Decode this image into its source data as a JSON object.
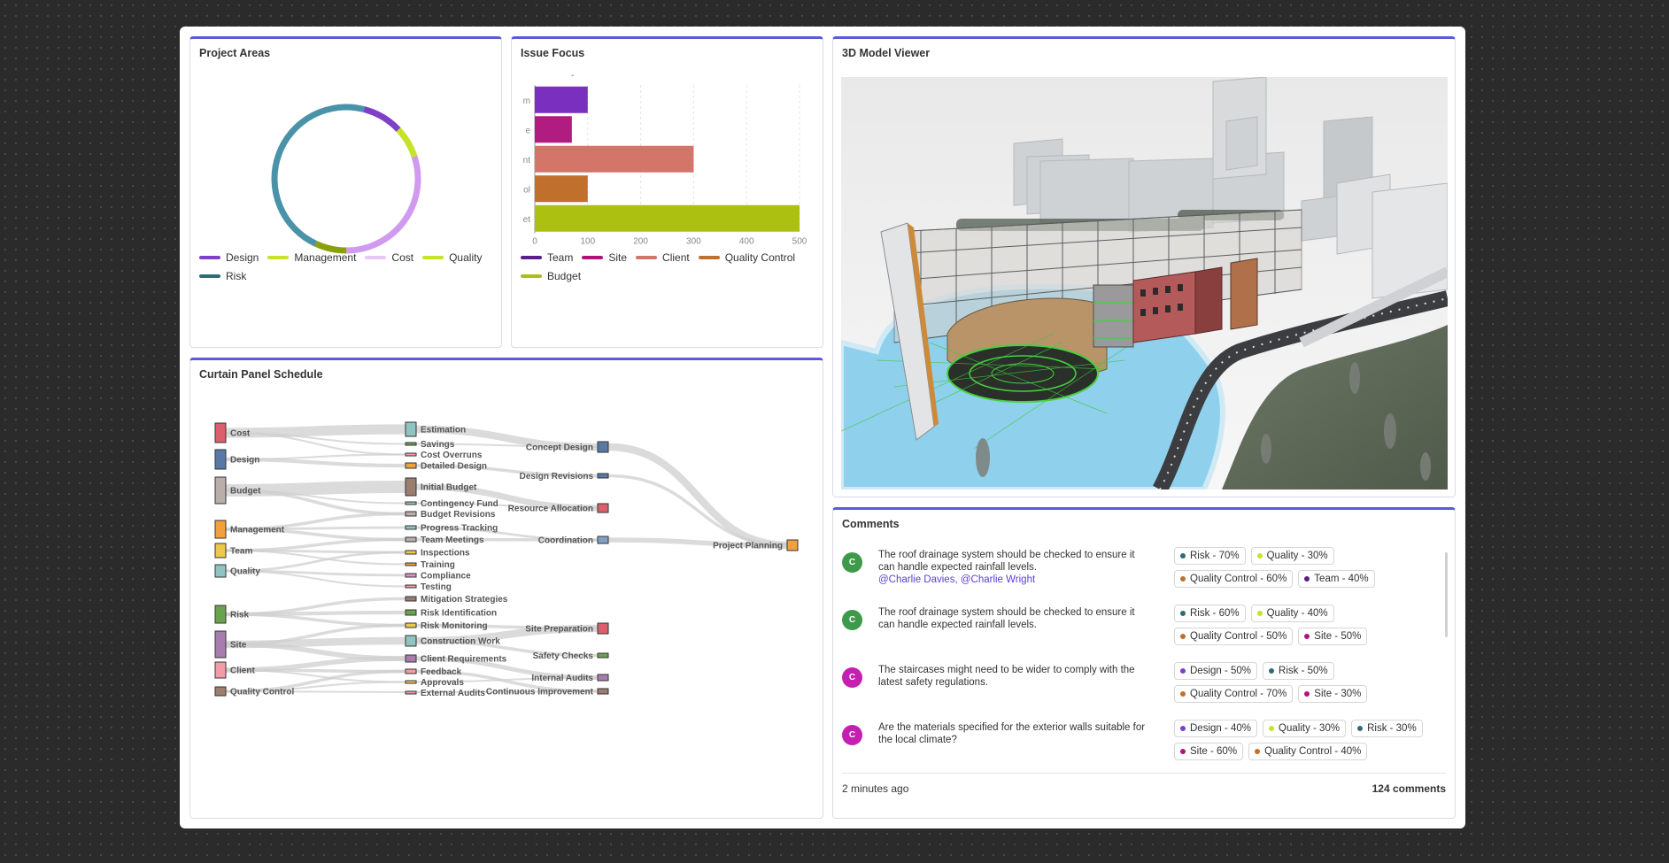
{
  "cards": {
    "project_areas": "Project Areas",
    "issue_focus": "Issue Focus",
    "viewer": "3D Model Viewer",
    "schedule": "Curtain Panel Schedule",
    "comments": "Comments"
  },
  "donut": {
    "series": [
      {
        "name": "Design",
        "value": 9,
        "color": "#7e3fc9"
      },
      {
        "name": "Management",
        "value": 7,
        "color": "#c7e22b"
      },
      {
        "name": "Cost",
        "value": 30,
        "color": "#d09af0"
      },
      {
        "name": "Quality",
        "value": 7,
        "color": "#8aa00a"
      },
      {
        "name": "Risk",
        "value": 47,
        "color": "#4a92a8"
      }
    ],
    "legend": [
      {
        "label": "Design",
        "color": "#7e3fc9"
      },
      {
        "label": "Management",
        "color": "#c7e22b"
      },
      {
        "label": "Cost",
        "color": "#e8c7f5"
      },
      {
        "label": "Quality",
        "color": "#c7e22b"
      },
      {
        "label": "Risk",
        "color": "#2f6c78"
      }
    ]
  },
  "chart_data": {
    "type": "bar",
    "orientation": "horizontal",
    "title": "-",
    "categories": [
      "m",
      "e",
      "nt",
      "ol",
      "et"
    ],
    "values": [
      100,
      70,
      300,
      100,
      500
    ],
    "colors": [
      "#7b2fbe",
      "#b01c80",
      "#d4756a",
      "#c0702c",
      "#acc012"
    ],
    "xlim": [
      0,
      500
    ],
    "xticks": [
      0,
      100,
      200,
      300,
      400,
      500
    ],
    "grid": true,
    "legend": [
      {
        "label": "Team",
        "color": "#5a1e8c"
      },
      {
        "label": "Site",
        "color": "#b0147a"
      },
      {
        "label": "Client",
        "color": "#d4756a"
      },
      {
        "label": "Quality Control",
        "color": "#c0702c"
      },
      {
        "label": "Budget",
        "color": "#acc012"
      }
    ]
  },
  "sankey": {
    "sources": [
      {
        "id": "cost",
        "label": "Cost",
        "color": "#d9606c"
      },
      {
        "id": "design",
        "label": "Design",
        "color": "#5878a6"
      },
      {
        "id": "budget",
        "label": "Budget",
        "color": "#b9aeaa"
      },
      {
        "id": "management",
        "label": "Management",
        "color": "#f0a03c"
      },
      {
        "id": "team",
        "label": "Team",
        "color": "#ecc94a"
      },
      {
        "id": "quality",
        "label": "Quality",
        "color": "#8fc4c0"
      },
      {
        "id": "risk",
        "label": "Risk",
        "color": "#6aa350"
      },
      {
        "id": "site",
        "label": "Site",
        "color": "#a77db0"
      },
      {
        "id": "client",
        "label": "Client",
        "color": "#f29ca8"
      },
      {
        "id": "qc",
        "label": "Quality Control",
        "color": "#9b7e6e"
      }
    ],
    "middle": [
      {
        "id": "estimation",
        "label": "Estimation",
        "color": "#8fc4c0"
      },
      {
        "id": "savings",
        "label": "Savings",
        "color": "#6aa350"
      },
      {
        "id": "overruns",
        "label": "Cost Overruns",
        "color": "#f29ca8"
      },
      {
        "id": "detailed",
        "label": "Detailed Design",
        "color": "#f0a03c"
      },
      {
        "id": "initial",
        "label": "Initial Budget",
        "color": "#9b7e6e"
      },
      {
        "id": "contingency",
        "label": "Contingency Fund",
        "color": "#8fc4c0"
      },
      {
        "id": "budgetrev",
        "label": "Budget Revisions",
        "color": "#b9aeaa"
      },
      {
        "id": "progress",
        "label": "Progress Tracking",
        "color": "#8fc4c0"
      },
      {
        "id": "meetings",
        "label": "Team Meetings",
        "color": "#b9aeaa"
      },
      {
        "id": "inspections",
        "label": "Inspections",
        "color": "#ecc94a"
      },
      {
        "id": "training",
        "label": "Training",
        "color": "#f0a03c"
      },
      {
        "id": "compliance",
        "label": "Compliance",
        "color": "#d995c8"
      },
      {
        "id": "testing",
        "label": "Testing",
        "color": "#f29ca8"
      },
      {
        "id": "mitigation",
        "label": "Mitigation Strategies",
        "color": "#9b7e6e"
      },
      {
        "id": "riskid",
        "label": "Risk Identification",
        "color": "#6aa350"
      },
      {
        "id": "riskmon",
        "label": "Risk Monitoring",
        "color": "#ecc94a"
      },
      {
        "id": "construction",
        "label": "Construction Work",
        "color": "#8fc4c0"
      },
      {
        "id": "clientreq",
        "label": "Client Requirements",
        "color": "#a77db0"
      },
      {
        "id": "feedback",
        "label": "Feedback",
        "color": "#f29ca8"
      },
      {
        "id": "approvals",
        "label": "Approvals",
        "color": "#ecc94a"
      },
      {
        "id": "extaudits",
        "label": "External Audits",
        "color": "#f29ca8"
      }
    ],
    "third": [
      {
        "id": "concept",
        "label": "Concept Design",
        "color": "#5878a6"
      },
      {
        "id": "designrev",
        "label": "Design Revisions",
        "color": "#5878a6"
      },
      {
        "id": "resource",
        "label": "Resource Allocation",
        "color": "#d9606c"
      },
      {
        "id": "coordination",
        "label": "Coordination",
        "color": "#7fa0c0"
      },
      {
        "id": "siteprep",
        "label": "Site Preparation",
        "color": "#d9606c"
      },
      {
        "id": "safety",
        "label": "Safety Checks",
        "color": "#6aa350"
      },
      {
        "id": "internal",
        "label": "Internal Audits",
        "color": "#a77db0"
      },
      {
        "id": "continuous",
        "label": "Continuous Improvement",
        "color": "#9b7e6e"
      }
    ],
    "final": [
      {
        "id": "planning",
        "label": "Project Planning",
        "color": "#f0a03c"
      }
    ]
  },
  "comments": [
    {
      "initial": "C",
      "avatar_color": "#3e9a4a",
      "text": "The roof drainage system should be checked to ensure it can handle expected rainfall levels.",
      "mentions": "@Charlie Davies, @Charlie Wright",
      "tags": [
        {
          "label": "Risk - 70%",
          "color": "#2f6c78"
        },
        {
          "label": "Quality - 30%",
          "color": "#c7e22b"
        },
        {
          "label": "Quality Control - 60%",
          "color": "#c0702c"
        },
        {
          "label": "Team - 40%",
          "color": "#5a1e8c"
        }
      ]
    },
    {
      "initial": "C",
      "avatar_color": "#3e9a4a",
      "text": "The roof drainage system should be checked to ensure it can handle expected rainfall levels.",
      "mentions": "",
      "tags": [
        {
          "label": "Risk - 60%",
          "color": "#2f6c78"
        },
        {
          "label": "Quality - 40%",
          "color": "#c7e22b"
        },
        {
          "label": "Quality Control - 50%",
          "color": "#c0702c"
        },
        {
          "label": "Site - 50%",
          "color": "#b0147a"
        }
      ]
    },
    {
      "initial": "C",
      "avatar_color": "#c41fb0",
      "text": "The staircases might need to be wider to comply with the latest safety regulations.",
      "mentions": "",
      "tags": [
        {
          "label": "Design - 50%",
          "color": "#7e3fc9"
        },
        {
          "label": "Risk - 50%",
          "color": "#2f6c78"
        },
        {
          "label": "Quality Control - 70%",
          "color": "#c0702c"
        },
        {
          "label": "Site - 30%",
          "color": "#b0147a"
        }
      ]
    },
    {
      "initial": "C",
      "avatar_color": "#c41fb0",
      "text": "Are the materials specified for the exterior walls suitable for the local climate?",
      "mentions": "",
      "tags": [
        {
          "label": "Design - 40%",
          "color": "#7e3fc9"
        },
        {
          "label": "Quality - 30%",
          "color": "#c7e22b"
        },
        {
          "label": "Risk - 30%",
          "color": "#2f6c78"
        },
        {
          "label": "Site - 60%",
          "color": "#b0147a"
        },
        {
          "label": "Quality Control - 40%",
          "color": "#c0702c"
        }
      ]
    }
  ],
  "footer": {
    "time": "2 minutes ago",
    "count": "124 comments"
  }
}
